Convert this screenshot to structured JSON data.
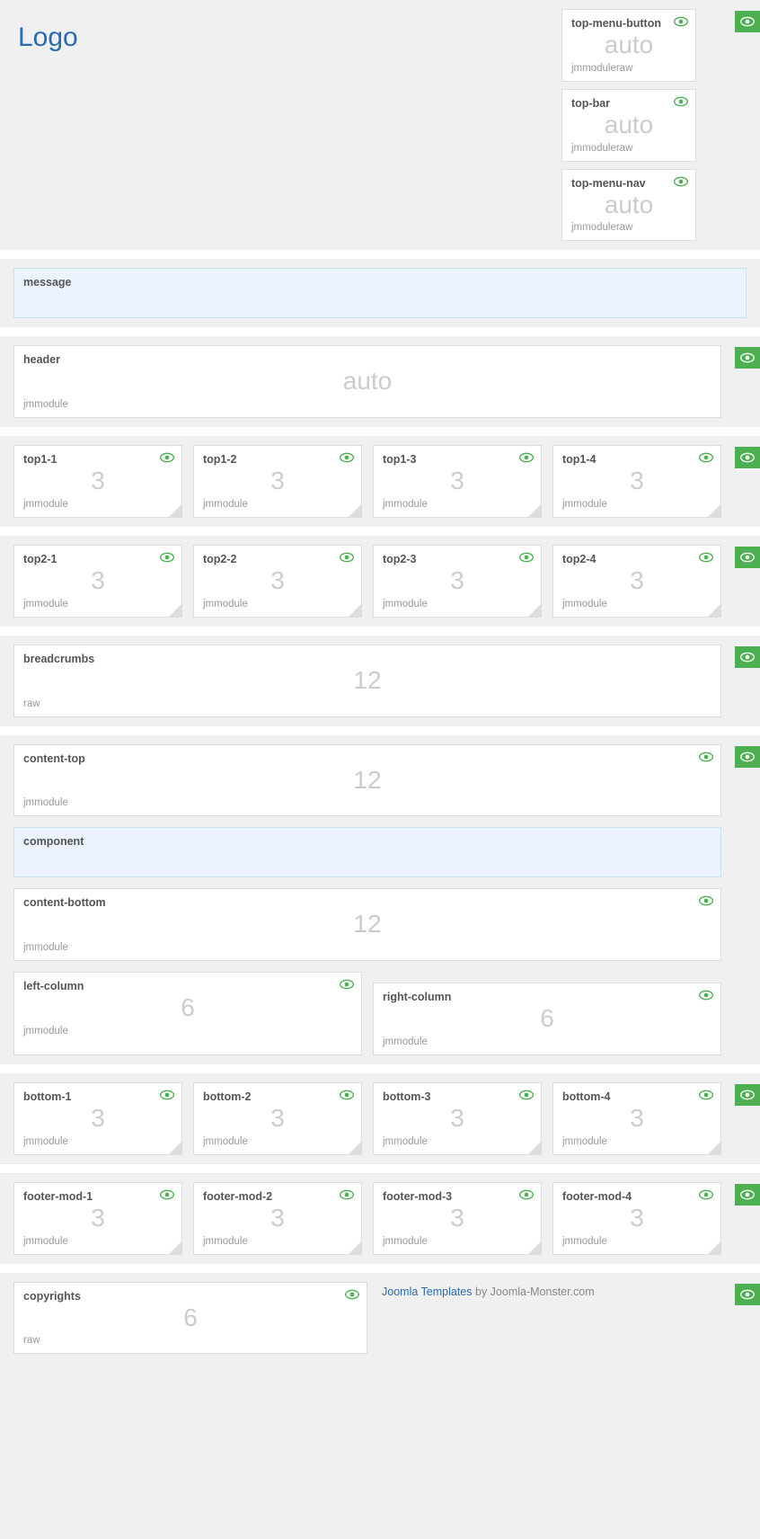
{
  "colors": {
    "page_bg": "#f0f0f0",
    "block_bg": "#ffffff",
    "block_border": "#dddddd",
    "highlight_bg": "#eaf3fe",
    "highlight_border": "#cddff2",
    "value_color": "#cccccc",
    "text_color": "#555555",
    "sub_color": "#999999",
    "badge_bg": "#4caf50",
    "eye_green": "#4caf50",
    "link_color": "#2a6ab0"
  },
  "logo": {
    "text": "Logo"
  },
  "top_stack": [
    {
      "title": "top-menu-button",
      "value": "auto",
      "sub": "jmmoduleraw",
      "eye": true
    },
    {
      "title": "top-bar",
      "value": "auto",
      "sub": "jmmoduleraw",
      "eye": true
    },
    {
      "title": "top-menu-nav",
      "value": "auto",
      "sub": "jmmoduleraw",
      "eye": true
    }
  ],
  "message": {
    "title": "message"
  },
  "header": {
    "title": "header",
    "value": "auto",
    "sub": "jmmodule"
  },
  "top1": [
    {
      "title": "top1-1",
      "value": "3",
      "sub": "jmmodule"
    },
    {
      "title": "top1-2",
      "value": "3",
      "sub": "jmmodule"
    },
    {
      "title": "top1-3",
      "value": "3",
      "sub": "jmmodule"
    },
    {
      "title": "top1-4",
      "value": "3",
      "sub": "jmmodule"
    }
  ],
  "top2": [
    {
      "title": "top2-1",
      "value": "3",
      "sub": "jmmodule"
    },
    {
      "title": "top2-2",
      "value": "3",
      "sub": "jmmodule"
    },
    {
      "title": "top2-3",
      "value": "3",
      "sub": "jmmodule"
    },
    {
      "title": "top2-4",
      "value": "3",
      "sub": "jmmodule"
    }
  ],
  "breadcrumbs": {
    "title": "breadcrumbs",
    "value": "12",
    "sub": "raw"
  },
  "content_top": {
    "title": "content-top",
    "value": "12",
    "sub": "jmmodule",
    "eye": true
  },
  "component": {
    "title": "component"
  },
  "content_bottom": {
    "title": "content-bottom",
    "value": "12",
    "sub": "jmmodule",
    "eye": true
  },
  "columns": [
    {
      "title": "left-column",
      "value": "6",
      "sub": "jmmodule",
      "eye": true
    },
    {
      "title": "right-column",
      "value": "6",
      "sub": "jmmodule",
      "eye": true
    }
  ],
  "bottom": [
    {
      "title": "bottom-1",
      "value": "3",
      "sub": "jmmodule"
    },
    {
      "title": "bottom-2",
      "value": "3",
      "sub": "jmmodule"
    },
    {
      "title": "bottom-3",
      "value": "3",
      "sub": "jmmodule"
    },
    {
      "title": "bottom-4",
      "value": "3",
      "sub": "jmmodule"
    }
  ],
  "footer_mod": [
    {
      "title": "footer-mod-1",
      "value": "3",
      "sub": "jmmodule"
    },
    {
      "title": "footer-mod-2",
      "value": "3",
      "sub": "jmmodule"
    },
    {
      "title": "footer-mod-3",
      "value": "3",
      "sub": "jmmodule"
    },
    {
      "title": "footer-mod-4",
      "value": "3",
      "sub": "jmmodule"
    }
  ],
  "copyrights": {
    "title": "copyrights",
    "value": "6",
    "sub": "raw",
    "eye": true
  },
  "footer_line": {
    "link": "Joomla Templates",
    "rest": " by Joomla-Monster.com"
  }
}
